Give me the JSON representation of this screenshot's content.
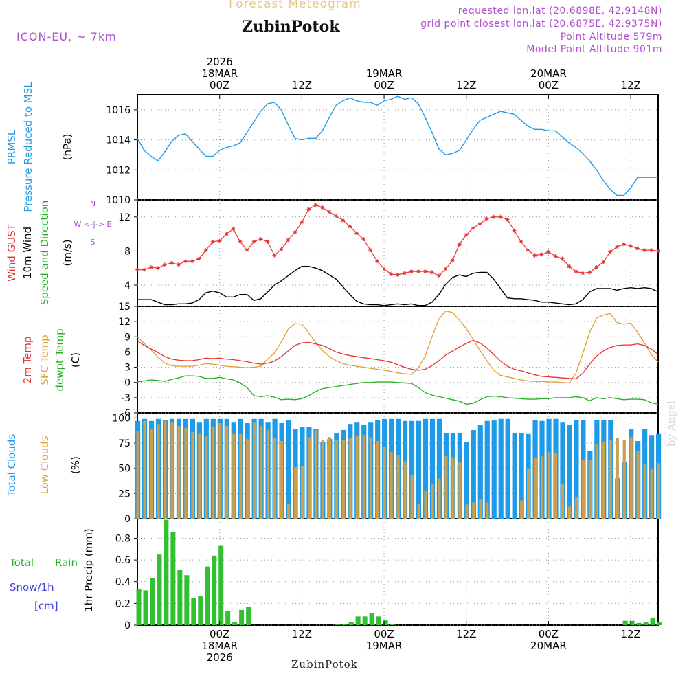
{
  "header": {
    "title": "Forecast Meteogram",
    "location": "ZubinPotok",
    "model": "ICON-EU, ~ 7km",
    "requested": "requested lon,lat (20.6898E, 42.9148N)",
    "closest": "grid point closest lon,lat (20.6875E, 42.9375N)",
    "point_altitude": "Point Altitude 579m",
    "model_altitude": "Model Point Altitude 901m",
    "credit": "by Angel",
    "bottom_location": "ZubinPotok"
  },
  "colors": {
    "pressure": "#1e9be8",
    "gust": "#e83030",
    "wind": "#000000",
    "temp": "#e83030",
    "sfc": "#e0a030",
    "dewpt": "#20b020",
    "total_clouds": "#1e9be8",
    "low_clouds": "#c8a050",
    "rain": "#30c030",
    "snow": "#4040e0",
    "label_black": "#000000",
    "dir_compass": "#b04fd0"
  },
  "time_axis": {
    "top_labels": [
      {
        "t": 12,
        "lines": [
          "2026",
          "18MAR",
          "00Z"
        ]
      },
      {
        "t": 24,
        "lines": [
          "12Z"
        ]
      },
      {
        "t": 36,
        "lines": [
          "19MAR",
          "00Z"
        ]
      },
      {
        "t": 48,
        "lines": [
          "12Z"
        ]
      },
      {
        "t": 60,
        "lines": [
          "20MAR",
          "00Z"
        ]
      },
      {
        "t": 72,
        "lines": [
          "12Z"
        ]
      }
    ],
    "bottom_labels": [
      {
        "t": 12,
        "lines": [
          "00Z",
          "18MAR",
          "2026"
        ]
      },
      {
        "t": 24,
        "lines": [
          "12Z"
        ]
      },
      {
        "t": 36,
        "lines": [
          "00Z",
          "19MAR"
        ]
      },
      {
        "t": 48,
        "lines": [
          "12Z"
        ]
      },
      {
        "t": 60,
        "lines": [
          "00Z",
          "20MAR"
        ]
      },
      {
        "t": 72,
        "lines": [
          "12Z"
        ]
      }
    ]
  },
  "panel_labels": {
    "pressure": [
      "PRMSL",
      "Pressure Reduced to MSL",
      "(hPa)"
    ],
    "wind": [
      "Wind GUST",
      "10m Wind",
      "Speed and Direction",
      "(m/s)"
    ],
    "compass": [
      "N",
      "W <-|-> E",
      "S"
    ],
    "temp": [
      "2m Temp",
      "SFC Temp",
      "dewpt Temp",
      "(C)"
    ],
    "clouds": [
      "Total Clouds",
      "Low Clouds",
      "(%)"
    ],
    "precip": [
      "Total",
      "Rain",
      "Snow/1h",
      "[cm]",
      "1hr Precip (mm)"
    ]
  },
  "chart_data": [
    {
      "type": "line",
      "title": "PRMSL Pressure Reduced to MSL",
      "ylabel": "(hPa)",
      "ylim": [
        1010,
        1017
      ],
      "yticks": [
        "1010",
        "1012",
        "1014",
        "1016"
      ],
      "x_hours": [
        0,
        1,
        2,
        3,
        4,
        5,
        6,
        7,
        8,
        9,
        10,
        11,
        12,
        13,
        14,
        15,
        16,
        17,
        18,
        19,
        20,
        21,
        22,
        23,
        24,
        25,
        26,
        27,
        28,
        29,
        30,
        31,
        32,
        33,
        34,
        35,
        36,
        37,
        38,
        39,
        40,
        41,
        42,
        43,
        44,
        45,
        46,
        47,
        48,
        49,
        50,
        51,
        52,
        53,
        54,
        55,
        56,
        57,
        58,
        59,
        60,
        61,
        62,
        63,
        64,
        65,
        66,
        67,
        68,
        69,
        70,
        71,
        72,
        73,
        74,
        75,
        76
      ],
      "series": [
        {
          "name": "PRMSL",
          "values": [
            1014.1,
            1013.3,
            1012.9,
            1012.6,
            1013.2,
            1013.9,
            1014.3,
            1014.4,
            1013.9,
            1013.4,
            1012.9,
            1012.9,
            1013.3,
            1013.5,
            1013.6,
            1013.8,
            1014.5,
            1015.2,
            1015.9,
            1016.4,
            1016.5,
            1016.0,
            1015.0,
            1014.1,
            1014.0,
            1014.1,
            1014.1,
            1014.6,
            1015.5,
            1016.3,
            1016.6,
            1016.8,
            1016.6,
            1016.5,
            1016.5,
            1016.3,
            1016.6,
            1016.7,
            1016.9,
            1016.7,
            1016.8,
            1016.4,
            1015.5,
            1014.5,
            1013.4,
            1013.0,
            1013.1,
            1013.3,
            1014.0,
            1014.7,
            1015.3,
            1015.5,
            1015.7,
            1015.9,
            1015.8,
            1015.7,
            1015.3,
            1014.9,
            1014.7,
            1014.7,
            1014.6,
            1014.6,
            1014.2,
            1013.8,
            1013.5,
            1013.1,
            1012.6,
            1012.0,
            1011.3,
            1010.7,
            1010.3,
            1010.3,
            1010.8,
            1011.5,
            1011.5,
            1011.5,
            1011.5
          ]
        }
      ]
    },
    {
      "type": "line",
      "title": "Wind GUST / 10m Wind Speed and Direction",
      "ylabel": "(m/s)",
      "ylim": [
        1.5,
        14
      ],
      "yticks": [
        "4",
        "8",
        "12"
      ],
      "series": [
        {
          "name": "Wind GUST",
          "values": [
            5.8,
            5.8,
            6.1,
            6.0,
            6.4,
            6.6,
            6.4,
            6.8,
            6.8,
            7.1,
            8.1,
            9.1,
            9.2,
            10.0,
            10.6,
            9.1,
            8.1,
            9.1,
            9.4,
            9.1,
            7.5,
            8.2,
            9.3,
            10.2,
            11.4,
            12.9,
            13.4,
            13.1,
            12.6,
            12.1,
            11.6,
            10.9,
            10.1,
            9.4,
            8.1,
            6.8,
            5.9,
            5.3,
            5.2,
            5.4,
            5.6,
            5.6,
            5.6,
            5.5,
            5.1,
            5.9,
            6.9,
            8.8,
            9.9,
            10.7,
            11.2,
            11.8,
            12.0,
            12.0,
            11.7,
            10.4,
            9.1,
            8.1,
            7.5,
            7.6,
            7.9,
            7.4,
            7.1,
            6.2,
            5.6,
            5.4,
            5.5,
            6.1,
            6.7,
            7.9,
            8.5,
            8.8,
            8.6,
            8.3,
            8.1,
            8.1,
            8.0
          ]
        },
        {
          "name": "10m Wind",
          "values": [
            2.3,
            2.3,
            2.3,
            2.0,
            1.7,
            1.7,
            1.8,
            1.8,
            1.9,
            2.3,
            3.1,
            3.3,
            3.1,
            2.6,
            2.6,
            2.9,
            2.9,
            2.2,
            2.4,
            3.2,
            4.0,
            4.5,
            5.1,
            5.7,
            6.2,
            6.2,
            6.0,
            5.7,
            5.2,
            4.7,
            3.8,
            2.9,
            2.1,
            1.8,
            1.7,
            1.7,
            1.6,
            1.7,
            1.8,
            1.7,
            1.8,
            1.6,
            1.6,
            2.0,
            2.9,
            4.1,
            4.9,
            5.2,
            5.0,
            5.4,
            5.5,
            5.5,
            4.7,
            3.6,
            2.5,
            2.4,
            2.4,
            2.3,
            2.2,
            2.0,
            2.0,
            1.9,
            1.8,
            1.7,
            1.8,
            2.3,
            3.2,
            3.6,
            3.6,
            3.6,
            3.4,
            3.6,
            3.7,
            3.6,
            3.7,
            3.6,
            3.2
          ]
        }
      ]
    },
    {
      "type": "line",
      "title": "2m Temp / SFC Temp / dewpt Temp",
      "ylabel": "(C)",
      "ylim": [
        -6,
        15
      ],
      "yticks": [
        "-6",
        "-3",
        "0",
        "3",
        "6",
        "9",
        "12",
        "15"
      ],
      "series": [
        {
          "name": "2m Temp",
          "values": [
            8.2,
            7.3,
            6.6,
            5.9,
            5.1,
            4.6,
            4.4,
            4.3,
            4.3,
            4.5,
            4.8,
            4.7,
            4.8,
            4.6,
            4.5,
            4.3,
            4.1,
            3.8,
            3.6,
            3.8,
            4.2,
            5.1,
            6.2,
            7.3,
            7.8,
            7.9,
            7.6,
            7.3,
            6.7,
            6.0,
            5.6,
            5.3,
            5.1,
            4.9,
            4.7,
            4.5,
            4.3,
            4.0,
            3.5,
            3.0,
            2.6,
            2.4,
            2.6,
            3.3,
            4.3,
            5.4,
            6.2,
            7.0,
            7.7,
            8.3,
            7.8,
            6.8,
            5.5,
            4.2,
            3.2,
            2.6,
            2.3,
            1.9,
            1.5,
            1.2,
            1.1,
            1.0,
            0.9,
            0.8,
            0.7,
            1.8,
            3.6,
            5.2,
            6.2,
            6.9,
            7.3,
            7.4,
            7.4,
            7.6,
            7.3,
            6.6,
            5.5
          ]
        },
        {
          "name": "SFC Temp",
          "values": [
            9.0,
            7.7,
            6.4,
            5.0,
            3.8,
            3.3,
            3.2,
            3.2,
            3.2,
            3.4,
            3.7,
            3.6,
            3.4,
            3.2,
            3.1,
            3.0,
            2.9,
            3.0,
            3.2,
            4.6,
            5.8,
            8.0,
            10.5,
            11.6,
            11.5,
            9.8,
            7.9,
            6.3,
            5.1,
            4.3,
            3.7,
            3.4,
            3.2,
            3.0,
            2.8,
            2.6,
            2.4,
            2.2,
            1.9,
            1.7,
            1.6,
            2.9,
            5.2,
            9.0,
            12.5,
            14.1,
            13.8,
            12.3,
            10.6,
            8.5,
            6.3,
            4.3,
            2.4,
            1.4,
            1.1,
            0.8,
            0.5,
            0.3,
            0.2,
            0.2,
            0.1,
            0.1,
            0.0,
            -0.1,
            1.8,
            5.7,
            9.9,
            12.7,
            13.3,
            13.6,
            11.8,
            11.5,
            11.7,
            9.9,
            7.8,
            5.5,
            4.0
          ]
        },
        {
          "name": "dewpt Temp",
          "values": [
            0.1,
            0.3,
            0.5,
            0.4,
            0.2,
            0.6,
            0.9,
            1.3,
            1.3,
            1.2,
            0.8,
            0.8,
            1.0,
            0.7,
            0.5,
            -0.1,
            -1.0,
            -2.6,
            -2.8,
            -2.6,
            -2.9,
            -3.4,
            -3.3,
            -3.4,
            -3.2,
            -2.6,
            -1.8,
            -1.2,
            -1.0,
            -0.8,
            -0.6,
            -0.4,
            -0.2,
            0.0,
            0.0,
            0.1,
            0.1,
            0.1,
            0.0,
            -0.1,
            -0.2,
            -1.0,
            -2.0,
            -2.5,
            -2.8,
            -3.1,
            -3.4,
            -3.7,
            -4.3,
            -4.1,
            -3.4,
            -2.8,
            -2.7,
            -2.8,
            -3.0,
            -3.1,
            -3.2,
            -3.3,
            -3.3,
            -3.2,
            -3.2,
            -3.0,
            -3.0,
            -3.0,
            -2.8,
            -3.0,
            -3.6,
            -3.0,
            -3.2,
            -3.0,
            -3.2,
            -3.4,
            -3.3,
            -3.3,
            -3.4,
            -4.0,
            -4.3
          ]
        }
      ]
    },
    {
      "type": "bar",
      "title": "Total Clouds / Low Clouds",
      "ylabel": "(%)",
      "ylim": [
        0,
        105
      ],
      "yticks": [
        "0",
        "25",
        "50",
        "75",
        "100"
      ],
      "series": [
        {
          "name": "Total Clouds",
          "values": [
            97,
            99,
            97,
            99,
            98,
            99,
            99,
            99,
            99,
            96,
            99,
            99,
            99,
            99,
            96,
            99,
            95,
            99,
            99,
            96,
            99,
            95,
            98,
            89,
            91,
            91,
            89,
            76,
            79,
            85,
            88,
            94,
            96,
            93,
            96,
            98,
            99,
            99,
            99,
            97,
            97,
            97,
            99,
            99,
            99,
            85,
            85,
            85,
            76,
            88,
            93,
            97,
            98,
            99,
            99,
            85,
            85,
            84,
            98,
            97,
            99,
            99,
            96,
            93,
            98,
            98,
            67,
            98,
            98,
            98,
            40,
            56,
            89,
            77,
            89,
            83,
            84
          ]
        },
        {
          "name": "Low Clouds",
          "values": [
            87,
            97,
            89,
            94,
            97,
            96,
            92,
            90,
            86,
            84,
            82,
            91,
            95,
            92,
            84,
            84,
            79,
            96,
            92,
            88,
            80,
            77,
            15,
            51,
            52,
            81,
            88,
            78,
            81,
            78,
            78,
            80,
            82,
            83,
            81,
            77,
            71,
            66,
            63,
            57,
            43,
            15,
            28,
            34,
            40,
            62,
            61,
            56,
            14,
            16,
            19,
            16,
            0,
            0,
            0,
            0,
            18,
            50,
            60,
            62,
            66,
            65,
            35,
            12,
            21,
            58,
            58,
            74,
            76,
            78,
            80,
            78,
            81,
            67,
            54,
            50,
            55
          ]
        }
      ]
    },
    {
      "type": "bar",
      "title": "1hr Precip",
      "ylabel": "1hr Precip (mm)",
      "ylim": [
        0,
        0.98
      ],
      "yticks": [
        "0",
        "0.2",
        "0.4",
        "0.6",
        "0.8"
      ],
      "series": [
        {
          "name": "Total Rain",
          "values": [
            0.33,
            0.32,
            0.43,
            0.65,
            0.97,
            0.86,
            0.51,
            0.46,
            0.25,
            0.27,
            0.54,
            0.64,
            0.73,
            0.13,
            0.03,
            0.14,
            0.17,
            0.0,
            0.0,
            0.0,
            0.0,
            0.0,
            0.0,
            0.0,
            0.0,
            0.0,
            0.0,
            0.0,
            0.0,
            0.01,
            0.01,
            0.03,
            0.08,
            0.08,
            0.11,
            0.08,
            0.05,
            0.01,
            0.0,
            0.0,
            0.0,
            0.0,
            0.0,
            0.0,
            0.0,
            0.0,
            0.0,
            0.0,
            0.0,
            0.0,
            0.0,
            0.0,
            0.0,
            0.0,
            0.0,
            0.0,
            0.0,
            0.0,
            0.0,
            0.0,
            0.0,
            0.0,
            0.0,
            0.0,
            0.0,
            0.0,
            0.0,
            0.0,
            0.0,
            0.0,
            0.0,
            0.04,
            0.04,
            0.02,
            0.03,
            0.07,
            0.03
          ]
        }
      ]
    }
  ]
}
